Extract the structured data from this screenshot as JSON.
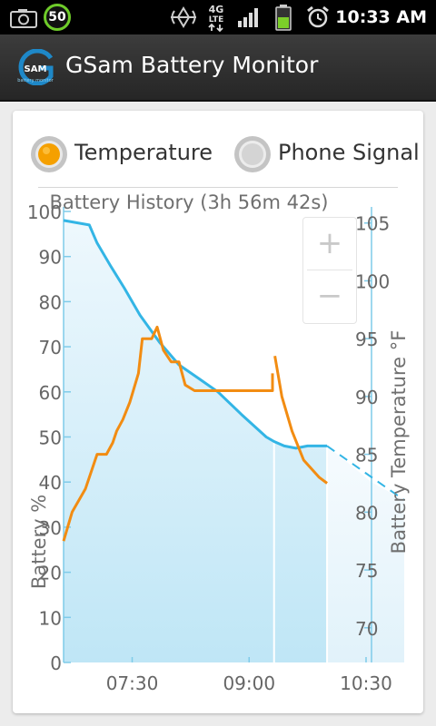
{
  "status_bar": {
    "notification_badge": "50",
    "network": "4G LTE",
    "time": "10:33 AM",
    "icons": [
      "photo-icon",
      "notification-badge-icon",
      "location-icon",
      "network-4g-icon",
      "signal-bars-icon",
      "battery-icon",
      "alarm-icon"
    ]
  },
  "app": {
    "title": "GSam Battery Monitor",
    "logo_text": "SAM",
    "logo_subtext": "battery monitor"
  },
  "radios": [
    {
      "label": "Temperature",
      "selected": true
    },
    {
      "label": "Phone Signal",
      "selected": false
    }
  ],
  "zoom": {
    "plus": "+",
    "minus": "−"
  },
  "colors": {
    "battery_line": "#33b5e5",
    "temperature_line": "#f28c12",
    "fill": "#bfe6f6",
    "selected_radio": "#f5a000"
  },
  "chart_data": {
    "type": "line",
    "title": "Battery History (3h 56m 42s)",
    "ylabel": "Battery %",
    "y2label": "Battery Temperature °F",
    "ylim": [
      0,
      100
    ],
    "y2lim": [
      67,
      106
    ],
    "y_ticks": [
      "0",
      "10",
      "20",
      "30",
      "40",
      "50",
      "60",
      "70",
      "80",
      "90",
      "100"
    ],
    "y2_ticks": [
      "70",
      "75",
      "80",
      "85",
      "90",
      "95",
      "100",
      "105"
    ],
    "x_ticks": [
      "07:30",
      "09:00",
      "10:30"
    ],
    "x_tick_hours": [
      7.5,
      9.0,
      10.5
    ],
    "x_range_hours": [
      6.62,
      10.57
    ],
    "battery_end_hour": 10.0,
    "markers_hours": [
      9.32,
      10.0
    ],
    "series": [
      {
        "name": "Battery %",
        "axis": "left",
        "points": [
          [
            6.62,
            98
          ],
          [
            6.95,
            97
          ],
          [
            7.05,
            93
          ],
          [
            7.22,
            88
          ],
          [
            7.4,
            83
          ],
          [
            7.6,
            77
          ],
          [
            7.85,
            71
          ],
          [
            8.1,
            66
          ],
          [
            8.35,
            63
          ],
          [
            8.6,
            60
          ],
          [
            8.9,
            55
          ],
          [
            9.22,
            50
          ],
          [
            9.32,
            49
          ],
          [
            9.45,
            48
          ],
          [
            9.6,
            47.5
          ],
          [
            9.75,
            48
          ],
          [
            10.0,
            48
          ]
        ]
      },
      {
        "name": "Battery %",
        "axis": "left",
        "projected": true,
        "points": [
          [
            10.0,
            48
          ],
          [
            10.57,
            40
          ]
        ]
      },
      {
        "name": "Battery Temperature °F",
        "axis": "right",
        "segments": [
          [
            [
              6.62,
              77.5
            ],
            [
              6.73,
              80
            ],
            [
              6.9,
              82
            ],
            [
              7.05,
              85
            ],
            [
              7.17,
              85
            ],
            [
              7.25,
              86
            ],
            [
              7.3,
              87
            ],
            [
              7.38,
              88
            ],
            [
              7.47,
              89.5
            ],
            [
              7.58,
              92
            ],
            [
              7.63,
              95
            ],
            [
              7.75,
              95
            ],
            [
              7.82,
              96
            ],
            [
              7.9,
              94
            ],
            [
              8.0,
              93
            ],
            [
              8.1,
              93
            ],
            [
              8.18,
              91
            ],
            [
              8.3,
              90.5
            ],
            [
              8.5,
              90.5
            ],
            [
              9.3,
              90.5
            ],
            [
              9.3,
              92
            ]
          ],
          [
            [
              9.33,
              93.5
            ],
            [
              9.42,
              90
            ],
            [
              9.55,
              87
            ],
            [
              9.7,
              84.5
            ],
            [
              9.9,
              83
            ],
            [
              10.0,
              82.5
            ]
          ]
        ]
      }
    ]
  }
}
